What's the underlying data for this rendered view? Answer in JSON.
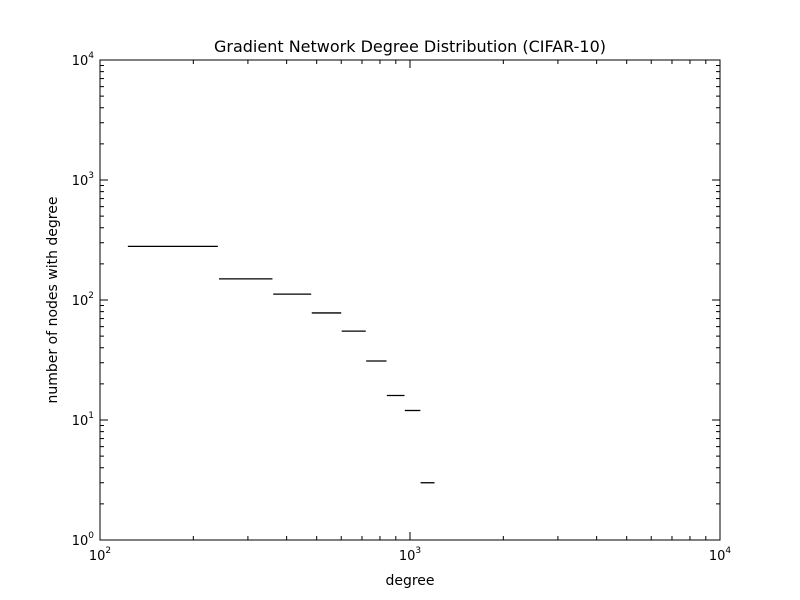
{
  "chart_data": {
    "type": "step-segments",
    "title": "Gradient Network Degree Distribution (CIFAR-10)",
    "xlabel": "degree",
    "ylabel": "number of nodes with degree",
    "xscale": "log",
    "yscale": "log",
    "xlim": [
      100,
      10000
    ],
    "ylim": [
      1,
      10000
    ],
    "grid": false,
    "line_color": "#000000",
    "x_ticks": [
      {
        "base": "10",
        "exp": "2",
        "value": 100
      },
      {
        "base": "10",
        "exp": "3",
        "value": 1000
      },
      {
        "base": "10",
        "exp": "4",
        "value": 10000
      }
    ],
    "y_ticks": [
      {
        "base": "10",
        "exp": "0",
        "value": 1
      },
      {
        "base": "10",
        "exp": "1",
        "value": 10
      },
      {
        "base": "10",
        "exp": "2",
        "value": 100
      },
      {
        "base": "10",
        "exp": "3",
        "value": 1000
      },
      {
        "base": "10",
        "exp": "4",
        "value": 10000
      }
    ],
    "segments": [
      {
        "x_start": 123,
        "x_end": 240,
        "y": 280
      },
      {
        "x_start": 242,
        "x_end": 360,
        "y": 150
      },
      {
        "x_start": 362,
        "x_end": 480,
        "y": 112
      },
      {
        "x_start": 482,
        "x_end": 600,
        "y": 78
      },
      {
        "x_start": 602,
        "x_end": 720,
        "y": 55
      },
      {
        "x_start": 722,
        "x_end": 840,
        "y": 31
      },
      {
        "x_start": 842,
        "x_end": 960,
        "y": 16
      },
      {
        "x_start": 962,
        "x_end": 1080,
        "y": 12
      },
      {
        "x_start": 1082,
        "x_end": 1200,
        "y": 3
      }
    ]
  }
}
